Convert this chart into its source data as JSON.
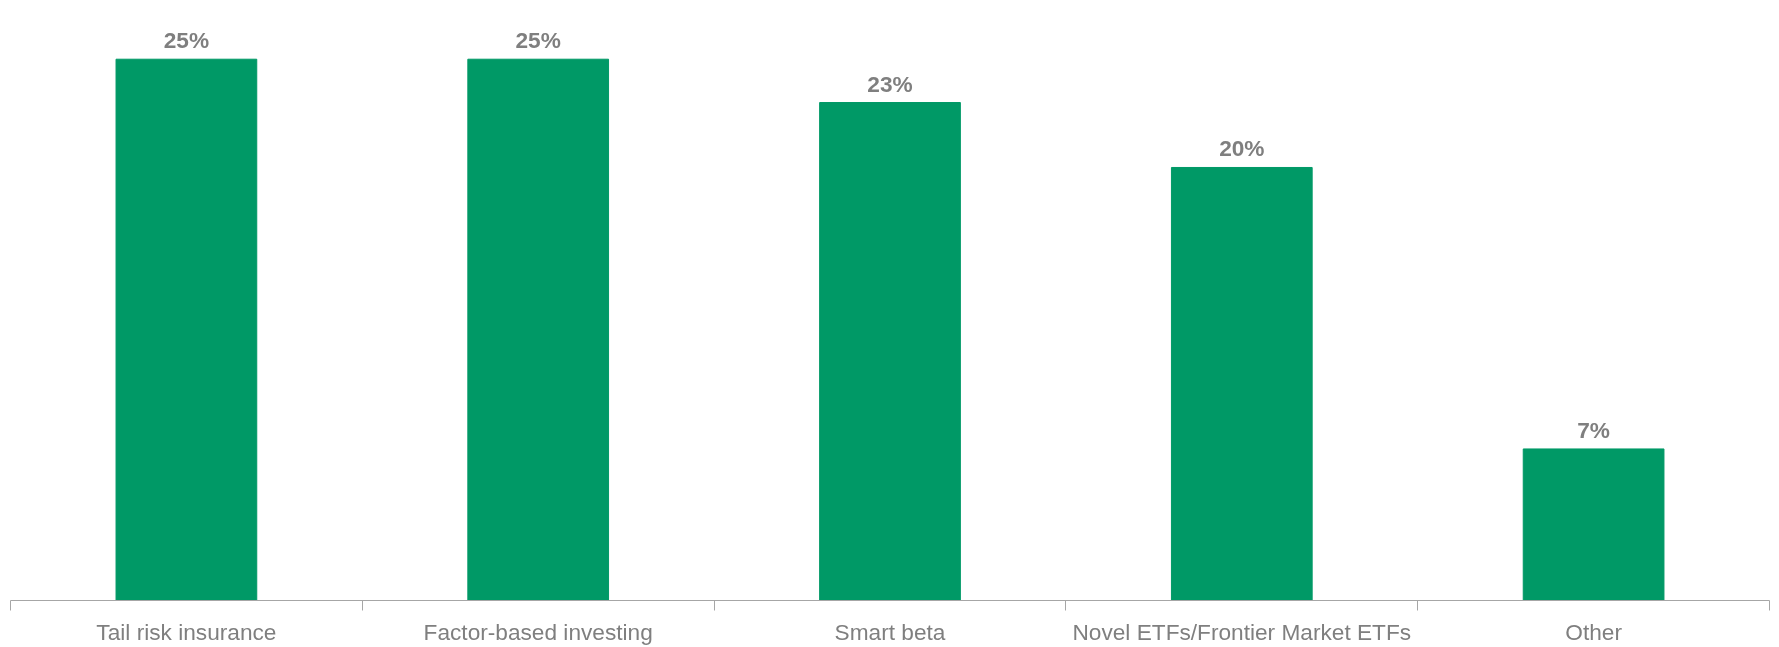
{
  "chart_data": {
    "type": "bar",
    "categories": [
      "Tail risk insurance",
      "Factor-based investing",
      "Smart beta",
      "Novel ETFs/Frontier Market ETFs",
      "Other"
    ],
    "values": [
      25,
      25,
      23,
      20,
      7
    ],
    "value_labels": [
      "25%",
      "25%",
      "23%",
      "20%",
      "7%"
    ],
    "color": "#009966"
  }
}
